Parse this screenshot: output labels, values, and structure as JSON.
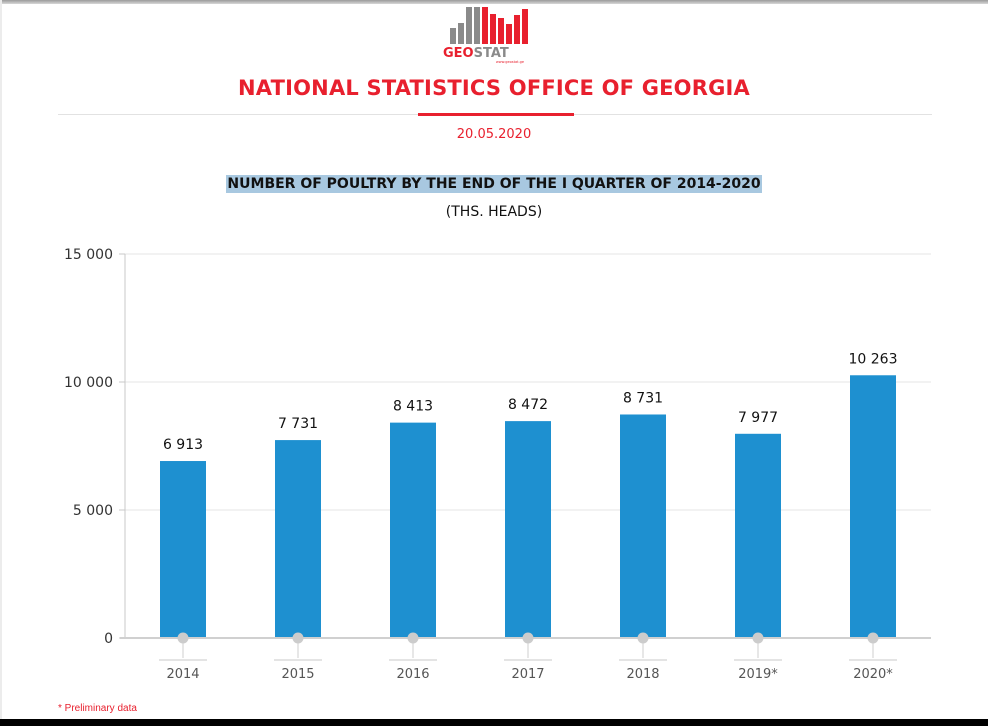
{
  "header": {
    "logo_text": "GEOSTAT",
    "logo_url_text": "www.geostat.ge",
    "organization": "NATIONAL STATISTICS OFFICE OF GEORGIA",
    "date": "20.05.2020"
  },
  "colors": {
    "accent": "#e8202e",
    "bar": "#1e90d0",
    "logo_gray": "#8a8a8a"
  },
  "footnote": "* Preliminary data",
  "chart_data": {
    "type": "bar",
    "title": "NUMBER OF POULTRY BY THE END OF THE I QUARTER OF 2014-2020",
    "subtitle": "(THS. HEADS)",
    "xlabel": "",
    "ylabel": "",
    "categories": [
      "2014",
      "2015",
      "2016",
      "2017",
      "2018",
      "2019*",
      "2020*"
    ],
    "values": [
      6913,
      7731,
      8413,
      8472,
      8731,
      7977,
      10263
    ],
    "data_labels": [
      "6 913",
      "7 731",
      "8 413",
      "8 472",
      "8 731",
      "7 977",
      "10 263"
    ],
    "ylim": [
      0,
      15000
    ],
    "yticks": [
      0,
      5000,
      10000,
      15000
    ],
    "ytick_labels": [
      "0",
      "5 000",
      "10 000",
      "15 000"
    ],
    "grid": true,
    "legend": "none"
  }
}
